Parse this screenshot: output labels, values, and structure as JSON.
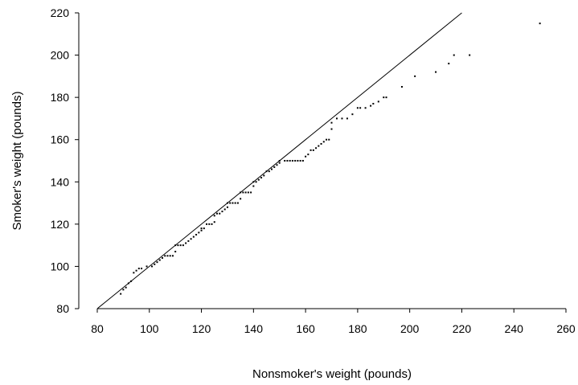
{
  "chart_data": {
    "type": "scatter",
    "title": "",
    "xlabel": "Nonsmoker's weight  (pounds)",
    "ylabel": "Smoker's weight  (pounds)",
    "xlim": [
      80,
      260
    ],
    "ylim": [
      80,
      220
    ],
    "xticks": [
      80,
      100,
      120,
      140,
      160,
      180,
      200,
      220,
      240,
      260
    ],
    "yticks": [
      80,
      100,
      120,
      140,
      160,
      180,
      200,
      220
    ],
    "grid": false,
    "reference_line": {
      "type": "y=x",
      "from": 80,
      "to": 220
    },
    "series": [
      {
        "marker_color": "#000000",
        "points": [
          [
            89,
            87
          ],
          [
            90,
            89
          ],
          [
            91,
            90
          ],
          [
            92,
            92
          ],
          [
            93,
            93
          ],
          [
            94,
            97
          ],
          [
            95,
            98
          ],
          [
            96,
            99
          ],
          [
            97,
            99
          ],
          [
            99,
            100
          ],
          [
            101,
            100
          ],
          [
            102,
            101
          ],
          [
            103,
            102
          ],
          [
            104,
            103
          ],
          [
            105,
            104
          ],
          [
            106,
            105
          ],
          [
            107,
            105
          ],
          [
            108,
            105
          ],
          [
            109,
            105
          ],
          [
            110,
            107
          ],
          [
            110,
            110
          ],
          [
            111,
            110
          ],
          [
            112,
            110
          ],
          [
            113,
            110
          ],
          [
            114,
            111
          ],
          [
            115,
            112
          ],
          [
            116,
            113
          ],
          [
            117,
            114
          ],
          [
            118,
            115
          ],
          [
            119,
            116
          ],
          [
            120,
            117
          ],
          [
            120,
            118
          ],
          [
            121,
            118
          ],
          [
            122,
            120
          ],
          [
            123,
            120
          ],
          [
            124,
            120
          ],
          [
            125,
            121
          ],
          [
            125,
            124
          ],
          [
            126,
            125
          ],
          [
            127,
            125
          ],
          [
            128,
            126
          ],
          [
            129,
            127
          ],
          [
            130,
            128
          ],
          [
            130,
            130
          ],
          [
            131,
            130
          ],
          [
            132,
            130
          ],
          [
            133,
            130
          ],
          [
            134,
            130
          ],
          [
            135,
            132
          ],
          [
            135,
            135
          ],
          [
            136,
            135
          ],
          [
            137,
            135
          ],
          [
            138,
            135
          ],
          [
            139,
            135
          ],
          [
            140,
            138
          ],
          [
            140,
            140
          ],
          [
            141,
            140
          ],
          [
            142,
            141
          ],
          [
            143,
            142
          ],
          [
            144,
            143
          ],
          [
            145,
            145
          ],
          [
            146,
            145
          ],
          [
            147,
            146
          ],
          [
            148,
            147
          ],
          [
            149,
            148
          ],
          [
            150,
            149
          ],
          [
            150,
            150
          ],
          [
            152,
            150
          ],
          [
            153,
            150
          ],
          [
            154,
            150
          ],
          [
            155,
            150
          ],
          [
            156,
            150
          ],
          [
            157,
            150
          ],
          [
            158,
            150
          ],
          [
            159,
            150
          ],
          [
            160,
            152
          ],
          [
            161,
            153
          ],
          [
            162,
            155
          ],
          [
            163,
            155
          ],
          [
            164,
            156
          ],
          [
            165,
            157
          ],
          [
            166,
            158
          ],
          [
            167,
            159
          ],
          [
            168,
            160
          ],
          [
            169,
            160
          ],
          [
            170,
            165
          ],
          [
            170,
            168
          ],
          [
            172,
            170
          ],
          [
            174,
            170
          ],
          [
            176,
            170
          ],
          [
            178,
            172
          ],
          [
            180,
            175
          ],
          [
            181,
            175
          ],
          [
            183,
            175
          ],
          [
            185,
            176
          ],
          [
            186,
            177
          ],
          [
            188,
            178
          ],
          [
            190,
            180
          ],
          [
            191,
            180
          ],
          [
            197,
            185
          ],
          [
            202,
            190
          ],
          [
            210,
            192
          ],
          [
            215,
            196
          ],
          [
            217,
            200
          ],
          [
            223,
            200
          ],
          [
            250,
            215
          ]
        ]
      }
    ]
  }
}
